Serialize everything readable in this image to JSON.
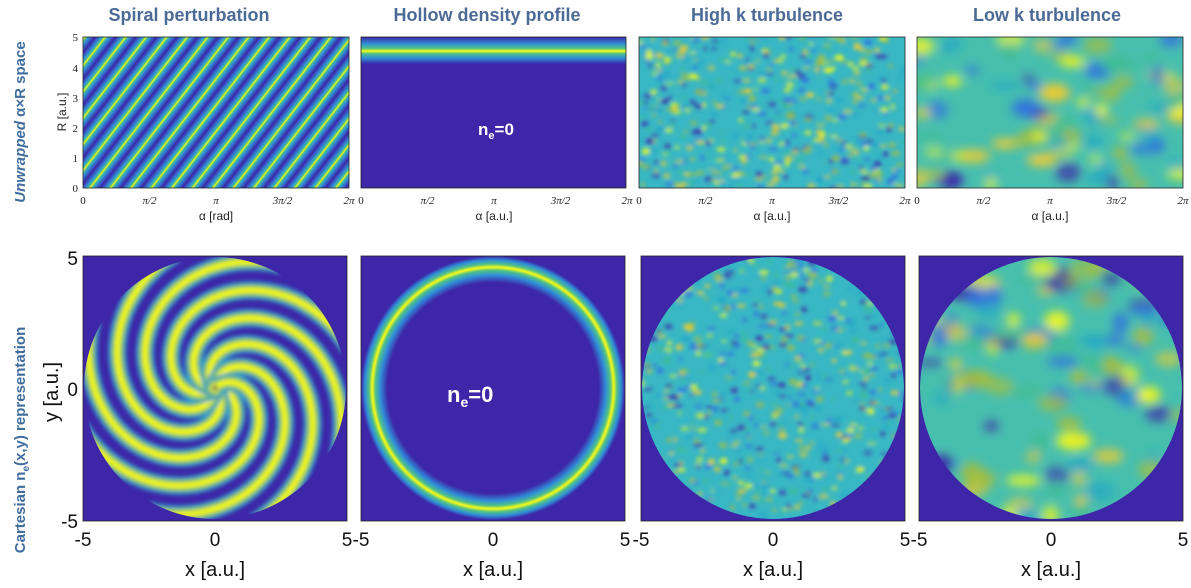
{
  "columns": [
    {
      "title": "Spiral perturbation",
      "pattern": "spiral"
    },
    {
      "title": "Hollow  density profile",
      "pattern": "hollow"
    },
    {
      "title": "High k turbulence",
      "pattern": "highk"
    },
    {
      "title": "Low k turbulence",
      "pattern": "lowk"
    }
  ],
  "row_labels": {
    "top_prefix": "Unwrapped",
    "top_suffix": " α×R space",
    "bottom_prefix": "Cartesian n",
    "bottom_sub": "e",
    "bottom_suffix": "(x,y) representation"
  },
  "annotations": {
    "ne_main": "n",
    "ne_sub": "e",
    "ne_value": "=0"
  },
  "top_axes": {
    "y_label": "R [a.u.]",
    "y_ticks": [
      "0",
      "1",
      "2",
      "3",
      "4",
      "5"
    ],
    "x_ticks": [
      "0",
      "π/2",
      "π",
      "3π/2",
      "2π"
    ],
    "x_labels": [
      "α  [rad]",
      "α [a.u.]",
      "α [a.u.]",
      "α [a.u.]"
    ]
  },
  "bottom_axes": {
    "y_label": "y [a.u.]",
    "y_ticks": [
      "-5",
      "0",
      "5"
    ],
    "x_ticks": [
      "-5",
      "0",
      "5"
    ],
    "x_label": "x [a.u.]"
  },
  "colors": {
    "background": "#3a2fa0",
    "colormap": [
      "#3e26a8",
      "#2f6fe0",
      "#1fa5c8",
      "#3fbd8f",
      "#a8be3c",
      "#f5cc2c",
      "#f9fb15"
    ],
    "title": "#4b6b96",
    "row_label": "#3f6d9e"
  }
}
